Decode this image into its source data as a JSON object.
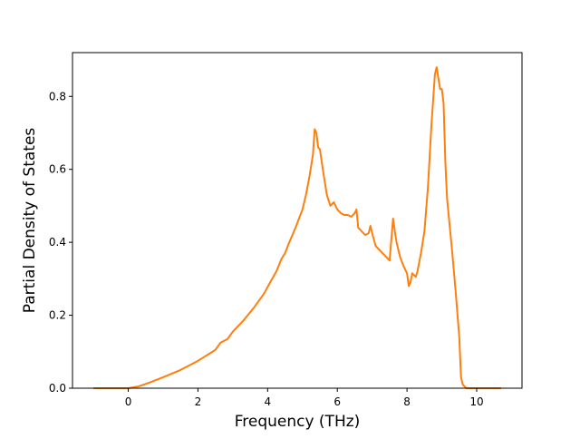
{
  "chart_data": {
    "type": "line",
    "title": "",
    "xlabel": "Frequency (THz)",
    "ylabel": "Partial Density of States",
    "xlim": [
      -1.6,
      11.3
    ],
    "ylim": [
      0.0,
      0.92
    ],
    "xticks": [
      0,
      2,
      4,
      6,
      8,
      10
    ],
    "yticks": [
      0.0,
      0.2,
      0.4,
      0.6,
      0.8
    ],
    "xtick_labels": [
      "0",
      "2",
      "4",
      "6",
      "8",
      "10"
    ],
    "ytick_labels": [
      "0.0",
      "0.2",
      "0.4",
      "0.6",
      "0.8"
    ],
    "grid": false,
    "legend": null,
    "series": [
      {
        "color": "#ff7f0e",
        "x": [
          -1.0,
          -0.5,
          0.0,
          0.3,
          0.6,
          1.0,
          1.5,
          2.0,
          2.5,
          2.65,
          2.85,
          3.0,
          3.3,
          3.6,
          3.9,
          4.1,
          4.25,
          4.4,
          4.5,
          4.6,
          4.8,
          5.0,
          5.1,
          5.2,
          5.3,
          5.35,
          5.4,
          5.45,
          5.5,
          5.6,
          5.7,
          5.8,
          5.9,
          6.0,
          6.1,
          6.2,
          6.3,
          6.4,
          6.5,
          6.55,
          6.6,
          6.8,
          6.9,
          6.95,
          7.0,
          7.1,
          7.2,
          7.35,
          7.5,
          7.6,
          7.65,
          7.7,
          7.8,
          7.9,
          8.0,
          8.05,
          8.1,
          8.15,
          8.2,
          8.25,
          8.3,
          8.4,
          8.5,
          8.6,
          8.7,
          8.8,
          8.85,
          8.9,
          8.95,
          9.0,
          9.05,
          9.1,
          9.15,
          9.2,
          9.3,
          9.4,
          9.5,
          9.55,
          9.6,
          9.7,
          10.0,
          10.7
        ],
        "y": [
          0.0,
          0.0,
          0.0,
          0.005,
          0.015,
          0.03,
          0.05,
          0.075,
          0.105,
          0.125,
          0.135,
          0.155,
          0.185,
          0.22,
          0.26,
          0.295,
          0.32,
          0.355,
          0.37,
          0.395,
          0.44,
          0.49,
          0.53,
          0.58,
          0.64,
          0.71,
          0.7,
          0.66,
          0.655,
          0.59,
          0.53,
          0.5,
          0.51,
          0.49,
          0.48,
          0.475,
          0.475,
          0.47,
          0.48,
          0.49,
          0.44,
          0.42,
          0.425,
          0.445,
          0.425,
          0.39,
          0.38,
          0.365,
          0.35,
          0.465,
          0.43,
          0.4,
          0.36,
          0.335,
          0.315,
          0.28,
          0.29,
          0.315,
          0.31,
          0.305,
          0.32,
          0.37,
          0.43,
          0.55,
          0.72,
          0.86,
          0.88,
          0.85,
          0.82,
          0.82,
          0.78,
          0.62,
          0.52,
          0.47,
          0.37,
          0.26,
          0.14,
          0.03,
          0.01,
          0.0,
          0.0,
          0.0
        ]
      }
    ]
  }
}
